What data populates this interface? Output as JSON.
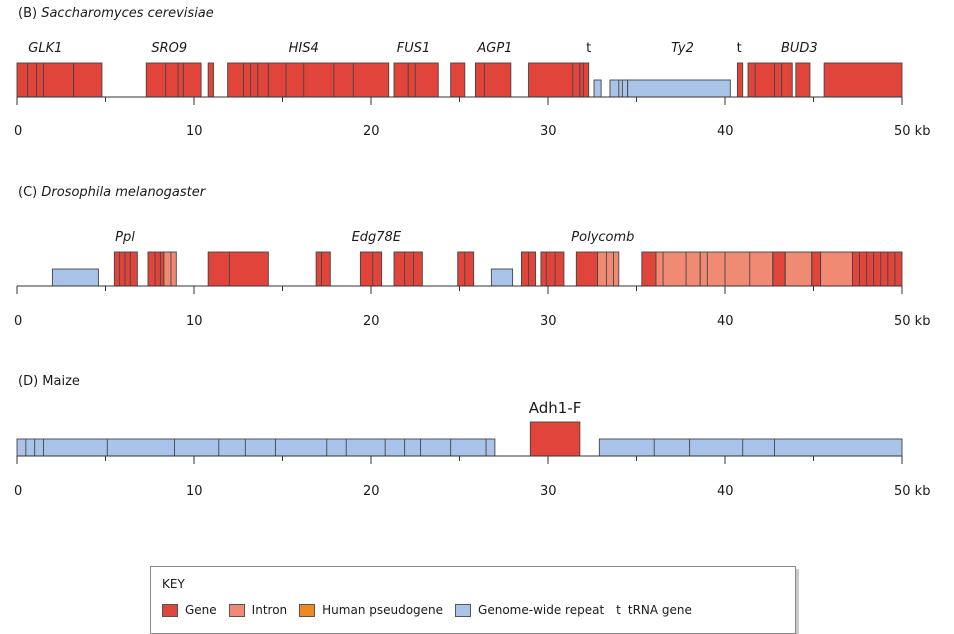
{
  "colors": {
    "gene": "#e0443a",
    "intron": "#f08a73",
    "pseudogene": "#f08a1e",
    "repeat": "#a9c4e8",
    "stroke": "#444444"
  },
  "scale": {
    "max_kb": 50,
    "unit": "kb"
  },
  "panels": [
    {
      "id": "B",
      "prefix": "(B) ",
      "title": "Saccharomyces cerevisiae",
      "italic": true,
      "ticks": [
        0,
        10,
        20,
        30,
        40,
        50
      ],
      "tick_labels": [
        "0",
        "10",
        "20",
        "30",
        "40",
        "50 kb"
      ],
      "minor_ticks": [
        5,
        15,
        25,
        35,
        45
      ],
      "blocks": [
        {
          "start": 0.0,
          "end": 3.2,
          "type": "gene",
          "h": "full"
        },
        {
          "start": 3.2,
          "end": 4.8,
          "type": "gene",
          "h": "full"
        },
        {
          "start": 7.3,
          "end": 10.4,
          "type": "gene",
          "h": "full"
        },
        {
          "start": 10.8,
          "end": 11.1,
          "type": "gene",
          "h": "full"
        },
        {
          "start": 11.9,
          "end": 14.2,
          "type": "gene",
          "h": "full"
        },
        {
          "start": 14.2,
          "end": 21.0,
          "type": "gene",
          "h": "full"
        },
        {
          "start": 21.3,
          "end": 23.8,
          "type": "gene",
          "h": "full"
        },
        {
          "start": 24.5,
          "end": 25.3,
          "type": "gene",
          "h": "full"
        },
        {
          "start": 25.9,
          "end": 27.9,
          "type": "gene",
          "h": "full"
        },
        {
          "start": 28.9,
          "end": 31.8,
          "type": "gene",
          "h": "full"
        },
        {
          "start": 31.8,
          "end": 32.3,
          "type": "gene",
          "h": "full"
        },
        {
          "start": 32.6,
          "end": 33.0,
          "type": "repeat",
          "h": "low"
        },
        {
          "start": 33.5,
          "end": 34.5,
          "type": "repeat",
          "h": "low"
        },
        {
          "start": 34.5,
          "end": 40.3,
          "type": "repeat",
          "h": "low"
        },
        {
          "start": 40.7,
          "end": 41.0,
          "type": "gene",
          "h": "full"
        },
        {
          "start": 41.3,
          "end": 43.8,
          "type": "gene",
          "h": "full"
        },
        {
          "start": 44.0,
          "end": 44.8,
          "type": "gene",
          "h": "full"
        },
        {
          "start": 45.6,
          "end": 50.0,
          "type": "gene",
          "h": "full"
        }
      ],
      "dividers": [
        0.6,
        1.1,
        1.5,
        8.4,
        9.1,
        9.4,
        12.8,
        13.2,
        13.6,
        15.2,
        16.2,
        17.9,
        19.0,
        22.1,
        22.5,
        26.4,
        31.4,
        32.0,
        34.0,
        34.2,
        41.7,
        42.8,
        43.2
      ],
      "labels": [
        {
          "text": "GLK1",
          "x": 1.6,
          "upright": false
        },
        {
          "text": "SRO9",
          "x": 8.6,
          "upright": false
        },
        {
          "text": "HIS4",
          "x": 16.2,
          "upright": false
        },
        {
          "text": "FUS1",
          "x": 22.4,
          "upright": false
        },
        {
          "text": "AGP1",
          "x": 27.0,
          "upright": false
        },
        {
          "text": "t",
          "x": 32.3,
          "upright": true
        },
        {
          "text": "Ty2",
          "x": 37.6,
          "upright": false
        },
        {
          "text": "t",
          "x": 40.8,
          "upright": true
        },
        {
          "text": "BUD3",
          "x": 44.2,
          "upright": false
        }
      ]
    },
    {
      "id": "C",
      "prefix": "(C) ",
      "title": "Drosophila melanogaster",
      "italic": true,
      "ticks": [
        0,
        10,
        20,
        30,
        40,
        50
      ],
      "tick_labels": [
        "0",
        "10",
        "20",
        "30",
        "40",
        "50 kb"
      ],
      "minor_ticks": [
        5,
        15,
        25,
        35,
        45
      ],
      "blocks": [
        {
          "start": 2.0,
          "end": 4.6,
          "type": "repeat",
          "h": "low"
        },
        {
          "start": 5.5,
          "end": 6.8,
          "type": "gene",
          "h": "full"
        },
        {
          "start": 7.4,
          "end": 8.3,
          "type": "gene",
          "h": "full"
        },
        {
          "start": 8.3,
          "end": 9.0,
          "type": "intron",
          "h": "full"
        },
        {
          "start": 10.8,
          "end": 14.2,
          "type": "gene",
          "h": "full"
        },
        {
          "start": 16.9,
          "end": 17.7,
          "type": "gene",
          "h": "full"
        },
        {
          "start": 19.4,
          "end": 20.6,
          "type": "gene",
          "h": "full"
        },
        {
          "start": 21.3,
          "end": 22.9,
          "type": "gene",
          "h": "full"
        },
        {
          "start": 24.9,
          "end": 25.8,
          "type": "gene",
          "h": "full"
        },
        {
          "start": 26.8,
          "end": 28.0,
          "type": "repeat",
          "h": "low"
        },
        {
          "start": 28.5,
          "end": 29.3,
          "type": "gene",
          "h": "full"
        },
        {
          "start": 29.6,
          "end": 30.9,
          "type": "gene",
          "h": "full"
        },
        {
          "start": 31.6,
          "end": 32.8,
          "type": "gene",
          "h": "full"
        },
        {
          "start": 32.8,
          "end": 34.0,
          "type": "intron",
          "h": "full"
        },
        {
          "start": 35.3,
          "end": 36.1,
          "type": "gene",
          "h": "full"
        },
        {
          "start": 36.1,
          "end": 38.6,
          "type": "intron",
          "h": "full"
        },
        {
          "start": 38.6,
          "end": 47.2,
          "type": "intron",
          "h": "full"
        },
        {
          "start": 42.7,
          "end": 43.4,
          "type": "gene",
          "h": "full"
        },
        {
          "start": 44.9,
          "end": 45.4,
          "type": "gene",
          "h": "full"
        },
        {
          "start": 47.2,
          "end": 50.0,
          "type": "gene",
          "h": "full"
        }
      ],
      "dividers": [
        5.8,
        6.1,
        6.4,
        7.8,
        8.1,
        8.7,
        12.0,
        17.2,
        20.1,
        21.9,
        22.4,
        25.3,
        28.9,
        29.9,
        30.4,
        33.3,
        33.7,
        36.5,
        37.8,
        39.0,
        40.0,
        41.4,
        42.7,
        43.4,
        44.9,
        45.4,
        47.6,
        48.0,
        48.4,
        48.8,
        49.2,
        49.6
      ],
      "labels": [
        {
          "text": "Ppl",
          "x": 6.1,
          "upright": false
        },
        {
          "text": "Edg78E",
          "x": 20.3,
          "upright": false
        },
        {
          "text": "Polycomb",
          "x": 33.1,
          "upright": false
        }
      ]
    },
    {
      "id": "D",
      "prefix": "(D) ",
      "title": "Maize",
      "italic": false,
      "ticks": [
        0,
        10,
        20,
        30,
        40,
        50
      ],
      "tick_labels": [
        "0",
        "10",
        "20",
        "30",
        "40",
        "50 kb"
      ],
      "minor_ticks": [
        5,
        15,
        25,
        35,
        45
      ],
      "blocks": [
        {
          "start": 0.0,
          "end": 27.0,
          "type": "repeat",
          "h": "low"
        },
        {
          "start": 29.0,
          "end": 31.8,
          "type": "gene",
          "h": "full"
        },
        {
          "start": 32.9,
          "end": 50.0,
          "type": "repeat",
          "h": "low"
        }
      ],
      "dividers": [
        0.5,
        1.0,
        1.5,
        5.1,
        8.9,
        11.4,
        12.9,
        14.6,
        17.5,
        18.6,
        20.8,
        21.9,
        22.8,
        24.5,
        26.5,
        36.0,
        38.0,
        41.0,
        42.8
      ],
      "labels": [
        {
          "text": "Adh1-F",
          "x": 30.4,
          "upright": true
        }
      ]
    }
  ],
  "key": {
    "title": "KEY",
    "items": [
      {
        "label": "Gene",
        "type": "gene"
      },
      {
        "label": "Intron",
        "type": "intron"
      },
      {
        "label": "Human pseudogene",
        "type": "pseudogene"
      },
      {
        "label": "Genome-wide repeat",
        "type": "repeat"
      }
    ],
    "trna_mark": "t",
    "trna_label": "tRNA gene"
  }
}
